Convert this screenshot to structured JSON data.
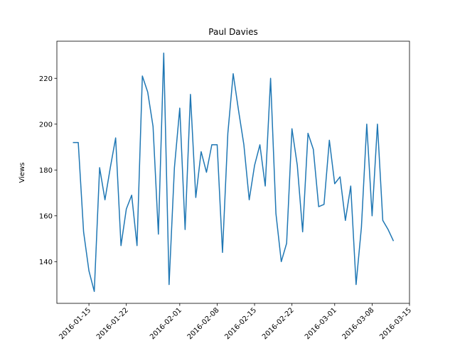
{
  "chart_data": {
    "type": "line",
    "title": "Paul Davies",
    "y_label": "Views",
    "x": [
      "2016-01-12",
      "2016-01-13",
      "2016-01-14",
      "2016-01-15",
      "2016-01-16",
      "2016-01-17",
      "2016-01-18",
      "2016-01-19",
      "2016-01-20",
      "2016-01-21",
      "2016-01-22",
      "2016-01-23",
      "2016-01-24",
      "2016-01-25",
      "2016-01-26",
      "2016-01-27",
      "2016-01-28",
      "2016-01-29",
      "2016-01-30",
      "2016-01-31",
      "2016-02-01",
      "2016-02-02",
      "2016-02-03",
      "2016-02-04",
      "2016-02-05",
      "2016-02-06",
      "2016-02-07",
      "2016-02-08",
      "2016-02-09",
      "2016-02-10",
      "2016-02-11",
      "2016-02-12",
      "2016-02-13",
      "2016-02-14",
      "2016-02-15",
      "2016-02-16",
      "2016-02-17",
      "2016-02-18",
      "2016-02-19",
      "2016-02-20",
      "2016-02-21",
      "2016-02-22",
      "2016-02-23",
      "2016-02-24",
      "2016-02-25",
      "2016-02-26",
      "2016-02-27",
      "2016-02-28",
      "2016-02-29",
      "2016-03-01",
      "2016-03-02",
      "2016-03-03",
      "2016-03-04",
      "2016-03-05",
      "2016-03-06",
      "2016-03-07",
      "2016-03-08",
      "2016-03-09",
      "2016-03-10",
      "2016-03-11",
      "2016-03-12"
    ],
    "series": [
      {
        "name": "Views",
        "color": "#1f77b4",
        "values": [
          192,
          192,
          153,
          136,
          127,
          181,
          167,
          181,
          194,
          147,
          163,
          169,
          147,
          221,
          214,
          199,
          152,
          231,
          130,
          181,
          207,
          154,
          213,
          168,
          188,
          179,
          191,
          191,
          144,
          196,
          222,
          206,
          191,
          167,
          182,
          191,
          173,
          220,
          161,
          140,
          148,
          198,
          182,
          153,
          196,
          189,
          164,
          165,
          193,
          174,
          177,
          158,
          173,
          130,
          155,
          200,
          160,
          200,
          158,
          154,
          149
        ]
      }
    ],
    "xlim": [
      "2016-01-09",
      "2016-03-15"
    ],
    "xticks": [
      "2016-01-15",
      "2016-01-22",
      "2016-02-01",
      "2016-02-08",
      "2016-02-15",
      "2016-02-22",
      "2016-03-01",
      "2016-03-08",
      "2016-03-15"
    ],
    "ylim": [
      121.8,
      236.2
    ],
    "yticks": [
      140,
      160,
      180,
      200,
      220
    ]
  }
}
